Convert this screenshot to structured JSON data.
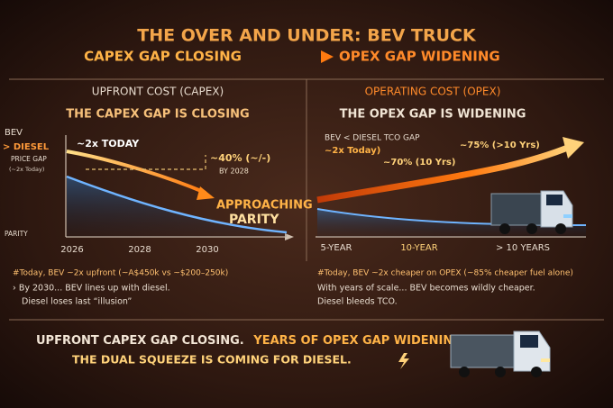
{
  "header": {
    "title": "THE OVER AND UNDER: BEV TRUCK",
    "left": "CAPEX GAP CLOSING",
    "right": "OPEX GAP WIDENING"
  },
  "capex": {
    "heading": "UPFRONT COST (CAPEX)",
    "subheading": "THE CAPEX GAP IS CLOSING",
    "y_labels": [
      "BEV",
      "> DIESEL",
      "PRICE GAP",
      "(~2x Today)",
      "PARITY"
    ],
    "today": "~2x TODAY",
    "mid": "~40% (~/-)",
    "mid_when": "BY 2028",
    "end": [
      "APPROACHING",
      "PARITY"
    ],
    "x_labels": [
      "2026",
      "2028",
      "2030"
    ],
    "notes": [
      "#Today, BEV ~2x upfront (~A$450k vs ~$200–250k)",
      "› By 2030... BEV lines up with diesel.",
      "Diesel loses last “illusion”"
    ]
  },
  "opex": {
    "heading": "OPERATING COST (OPEX)",
    "subheading": "THE OPEX GAP IS WIDENING",
    "gap_label": "BEV < DIESEL TCO GAP",
    "today": "~2x Today)",
    "mid": "~70% (10 Yrs)",
    "end": "~75% (>10 Yrs)",
    "x_labels": [
      "5-YEAR",
      "10-YEAR",
      "> 10 YEARS"
    ],
    "notes": [
      "#Today, BEV ~2x cheaper on OPEX (~85% cheaper fuel alone)",
      "With years of scale... BEV becomes wildly cheaper.",
      "Diesel bleeds TCO."
    ]
  },
  "footer": {
    "line1_a": "UPFRONT CAPEX GAP CLOSING.",
    "line1_b": "YEARS OF OPEX GAP WIDENING.",
    "line2": "THE DUAL SQUEEZE IS COMING FOR DIESEL."
  }
}
